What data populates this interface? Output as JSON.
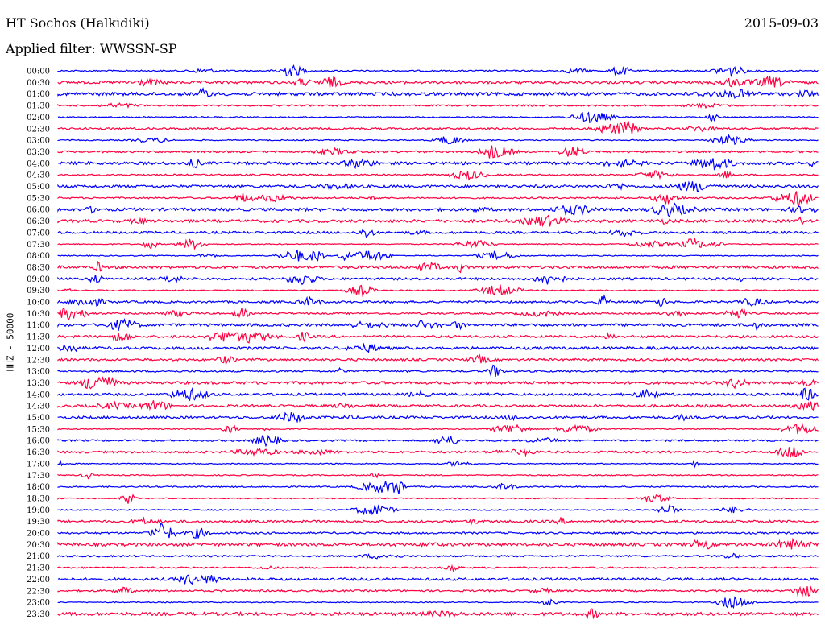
{
  "header": {
    "station": "HT Sochos (Halkidiki)",
    "date": "2015-09-03",
    "filter_label": "Applied filter: WWSSN-SP"
  },
  "chart_data": {
    "type": "helicorder",
    "ylabel": "HHZ - 50000",
    "colors": [
      "#0000ff",
      "#ff0040"
    ],
    "rows": [
      {
        "time": "00:00",
        "color_index": 0
      },
      {
        "time": "00:30",
        "color_index": 1
      },
      {
        "time": "01:00",
        "color_index": 0
      },
      {
        "time": "01:30",
        "color_index": 1
      },
      {
        "time": "02:00",
        "color_index": 0
      },
      {
        "time": "02:30",
        "color_index": 1
      },
      {
        "time": "03:00",
        "color_index": 0
      },
      {
        "time": "03:30",
        "color_index": 1
      },
      {
        "time": "04:00",
        "color_index": 0
      },
      {
        "time": "04:30",
        "color_index": 1
      },
      {
        "time": "05:00",
        "color_index": 0
      },
      {
        "time": "05:30",
        "color_index": 1
      },
      {
        "time": "06:00",
        "color_index": 0
      },
      {
        "time": "06:30",
        "color_index": 1
      },
      {
        "time": "07:00",
        "color_index": 0
      },
      {
        "time": "07:30",
        "color_index": 1
      },
      {
        "time": "08:00",
        "color_index": 0
      },
      {
        "time": "08:30",
        "color_index": 1
      },
      {
        "time": "09:00",
        "color_index": 0
      },
      {
        "time": "09:30",
        "color_index": 1
      },
      {
        "time": "10:00",
        "color_index": 0
      },
      {
        "time": "10:30",
        "color_index": 1
      },
      {
        "time": "11:00",
        "color_index": 0
      },
      {
        "time": "11:30",
        "color_index": 1
      },
      {
        "time": "12:00",
        "color_index": 0
      },
      {
        "time": "12:30",
        "color_index": 1
      },
      {
        "time": "13:00",
        "color_index": 0
      },
      {
        "time": "13:30",
        "color_index": 1
      },
      {
        "time": "14:00",
        "color_index": 0
      },
      {
        "time": "14:30",
        "color_index": 1
      },
      {
        "time": "15:00",
        "color_index": 0
      },
      {
        "time": "15:30",
        "color_index": 1
      },
      {
        "time": "16:00",
        "color_index": 0
      },
      {
        "time": "16:30",
        "color_index": 1
      },
      {
        "time": "17:00",
        "color_index": 0
      },
      {
        "time": "17:30",
        "color_index": 1
      },
      {
        "time": "18:00",
        "color_index": 0
      },
      {
        "time": "18:30",
        "color_index": 1
      },
      {
        "time": "19:00",
        "color_index": 0
      },
      {
        "time": "19:30",
        "color_index": 1
      },
      {
        "time": "20:00",
        "color_index": 0
      },
      {
        "time": "20:30",
        "color_index": 1
      },
      {
        "time": "21:00",
        "color_index": 0
      },
      {
        "time": "21:30",
        "color_index": 1
      },
      {
        "time": "22:00",
        "color_index": 0
      },
      {
        "time": "22:30",
        "color_index": 1
      },
      {
        "time": "23:00",
        "color_index": 0
      },
      {
        "time": "23:30",
        "color_index": 1
      }
    ]
  }
}
